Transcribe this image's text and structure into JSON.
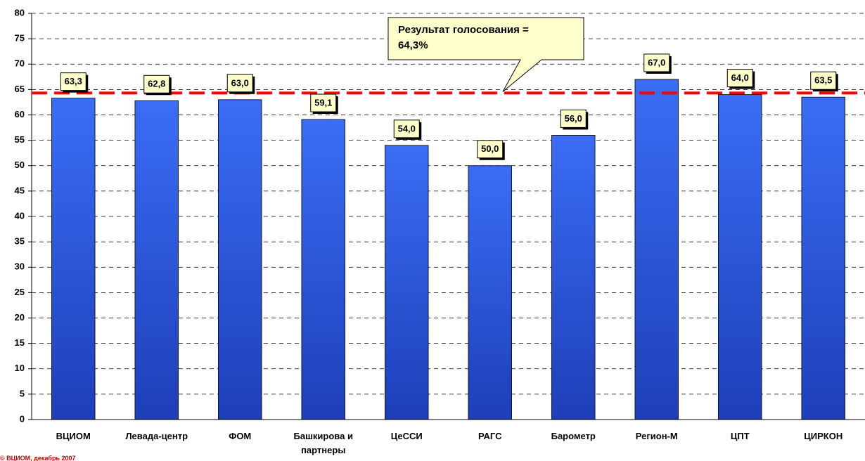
{
  "chart_data": {
    "type": "bar",
    "categories": [
      "ВЦИОМ",
      "Левада-центр",
      "ФОМ",
      "Башкирова и партнеры",
      "ЦеССИ",
      "РАГС",
      "Барометр",
      "Регион-М",
      "ЦПТ",
      "ЦИРКОН"
    ],
    "values": [
      63.3,
      62.8,
      63.0,
      59.1,
      54.0,
      50.0,
      56.0,
      67.0,
      64.0,
      63.5
    ],
    "value_labels": [
      "63,3",
      "62,8",
      "63,0",
      "59,1",
      "54,0",
      "50,0",
      "56,0",
      "67,0",
      "64,0",
      "63,5"
    ],
    "color": "#2f5ee0",
    "ylim": [
      0,
      80
    ],
    "yticks": [
      0,
      5,
      10,
      15,
      20,
      25,
      30,
      35,
      40,
      45,
      50,
      55,
      60,
      65,
      70,
      75,
      80
    ],
    "grid": true,
    "reference_line": {
      "value": 64.3,
      "color": "#ff0000",
      "label_lines": [
        "Результат голосования =",
        "64,3%"
      ]
    },
    "source": "© ВЦИОМ, декабрь 2007"
  }
}
